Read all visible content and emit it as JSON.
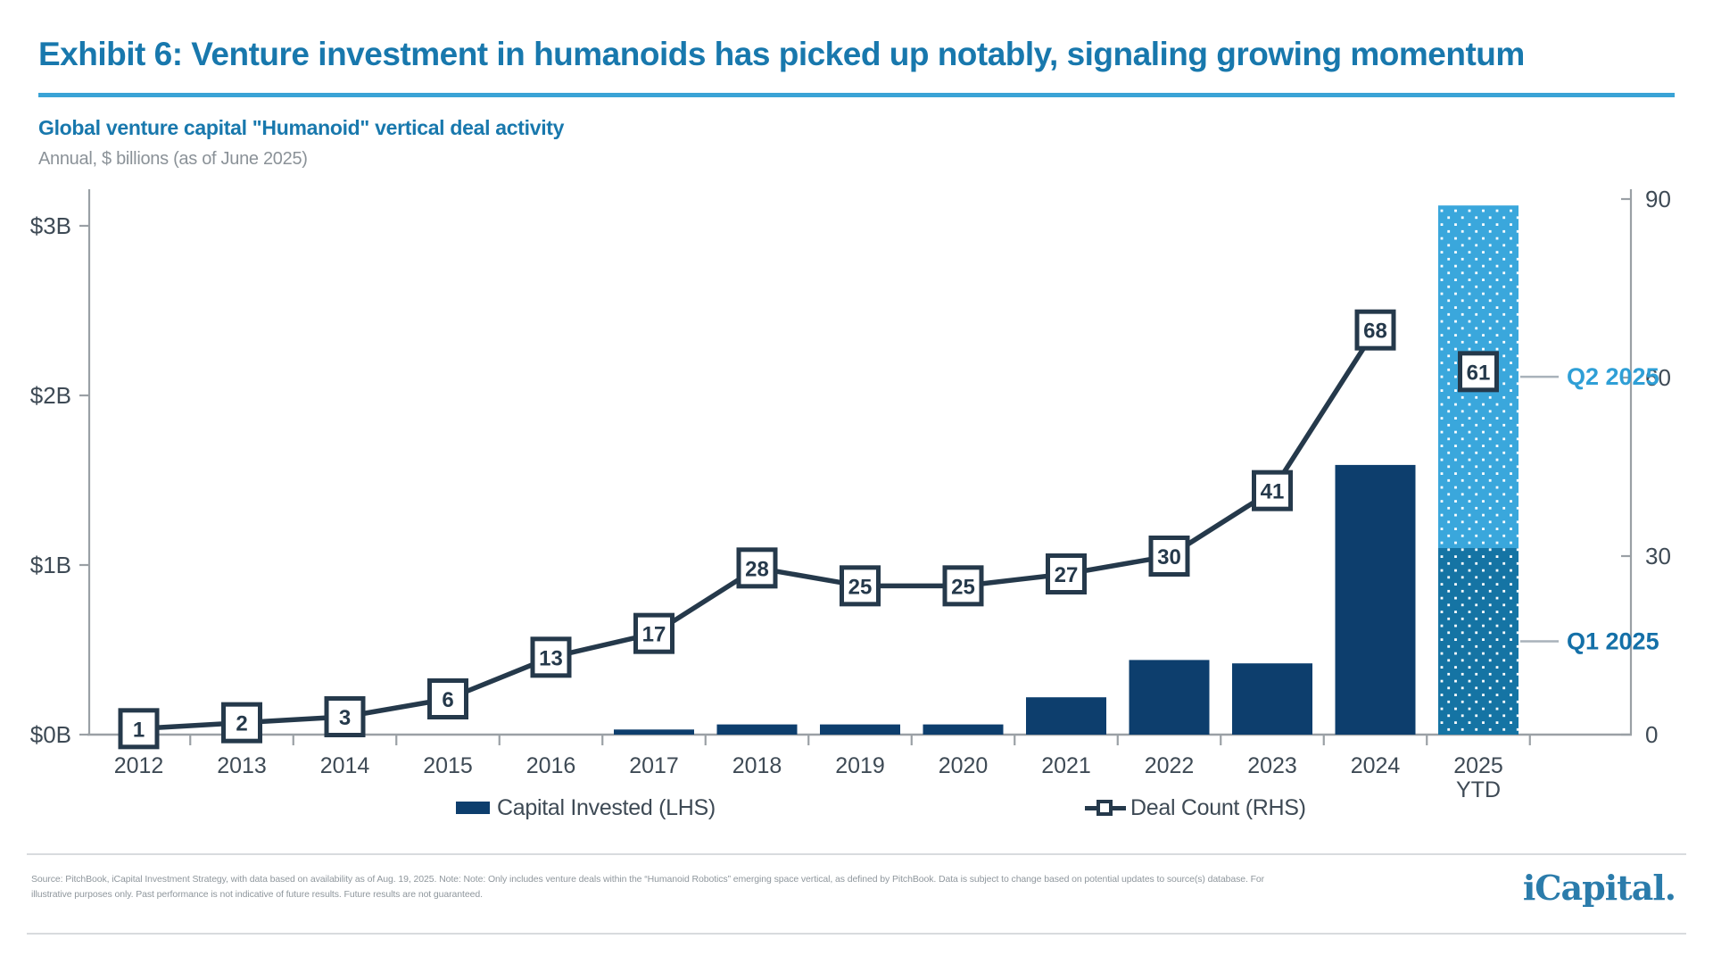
{
  "header": {
    "title": "Exhibit 6: Venture investment in humanoids has picked up notably, signaling growing momentum",
    "subtitle": "Global venture capital \"Humanoid\" vertical deal activity",
    "caption": "Annual, $ billions (as of June 2025)"
  },
  "colors": {
    "title_blue": "#1878ad",
    "underline_blue": "#3aa3d6",
    "bar_navy": "#0d3e6d",
    "line_navy": "#25394b",
    "q1_blue": "#1574a4",
    "q2_blue": "#3aa7dc",
    "q1_label_blue": "#1470a8",
    "q2_label_blue": "#2f9fd6",
    "axis_gray": "#9aa0a5",
    "tick_label_slate": "#3e4a55",
    "connector_gray": "#a9b2ba",
    "footnote_gray": "#8f979d",
    "logo_blue": "#2b7cab"
  },
  "chart_data": {
    "type": "bar",
    "title": "Global venture capital \"Humanoid\" vertical deal activity",
    "subtitle_units": "Annual, $ billions (as of June 2025)",
    "categories": [
      "2012",
      "2013",
      "2014",
      "2015",
      "2016",
      "2017",
      "2018",
      "2019",
      "2020",
      "2021",
      "2022",
      "2023",
      "2024",
      "2025 YTD"
    ],
    "series": [
      {
        "name": "Capital Invested (LHS)",
        "type": "bar",
        "axis": "left",
        "unit": "$B",
        "values": [
          null,
          null,
          null,
          null,
          null,
          0.03,
          0.06,
          0.06,
          0.06,
          0.22,
          0.44,
          0.42,
          1.59,
          null
        ]
      },
      {
        "name": "Deal Count (RHS)",
        "type": "line",
        "axis": "right",
        "values": [
          1,
          2,
          3,
          6,
          13,
          17,
          28,
          25,
          25,
          27,
          30,
          41,
          68,
          null
        ]
      }
    ],
    "stacked_final_bar": {
      "category": "2025 YTD",
      "segments": [
        {
          "label": "Q1 2025",
          "value_b": 1.1
        },
        {
          "label": "Q2 2025",
          "value_b": 2.02
        }
      ],
      "total_b": 3.12,
      "deal_count_label": 61
    },
    "left_axis": {
      "tick_labels": [
        "$0B",
        "$1B",
        "$2B",
        "$3B"
      ],
      "values": [
        0,
        1,
        2,
        3
      ],
      "range": [
        0,
        3
      ]
    },
    "right_axis": {
      "tick_labels": [
        "0",
        "30",
        "60",
        "90"
      ],
      "values": [
        0,
        30,
        60,
        90
      ],
      "range": [
        0,
        90
      ]
    },
    "legend": [
      {
        "label": "Capital Invested (LHS)"
      },
      {
        "label": "Deal Count (RHS)"
      }
    ],
    "grid": "off",
    "legend_position": "bottom"
  },
  "footer": {
    "source_line1": "Source: PitchBook, iCapital Investment Strategy, with data based on availability as of Aug. 19, 2025. Note: Note: Only includes venture deals within the “Humanoid Robotics” emerging space vertical, as defined by PitchBook. Data is subject to change based on potential updates to source(s) database. For",
    "source_line2": "illustrative purposes only. Past performance is not indicative of future results. Future results are not guaranteed.",
    "logo_text": "iCapital."
  }
}
